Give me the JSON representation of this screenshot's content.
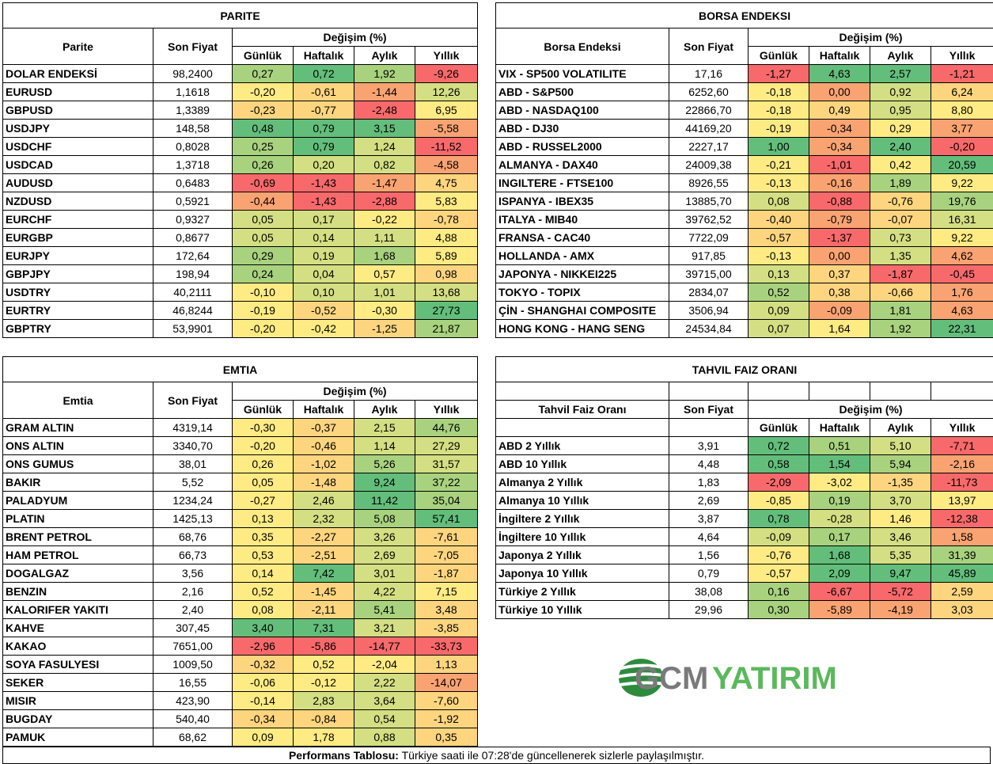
{
  "parite": {
    "title": "PARITE",
    "name_header": "Parite",
    "price_header": "Son Fiyat",
    "change_header": "Değişim (%)",
    "periods": [
      "Günlük",
      "Haftalık",
      "Aylık",
      "Yıllık"
    ],
    "rows": [
      {
        "name": "DOLAR ENDEKSİ",
        "price": "98,2400",
        "vals": [
          "0,27",
          "0,72",
          "1,92",
          "-9,26"
        ]
      },
      {
        "name": "EURUSD",
        "price": "1,1618",
        "vals": [
          "-0,20",
          "-0,61",
          "-1,44",
          "12,26"
        ]
      },
      {
        "name": "GBPUSD",
        "price": "1,3389",
        "vals": [
          "-0,23",
          "-0,77",
          "-2,48",
          "6,95"
        ]
      },
      {
        "name": "USDJPY",
        "price": "148,58",
        "vals": [
          "0,48",
          "0,79",
          "3,15",
          "-5,58"
        ]
      },
      {
        "name": "USDCHF",
        "price": "0,8028",
        "vals": [
          "0,25",
          "0,79",
          "1,24",
          "-11,52"
        ]
      },
      {
        "name": "USDCAD",
        "price": "1,3718",
        "vals": [
          "0,26",
          "0,20",
          "0,82",
          "-4,58"
        ]
      },
      {
        "name": "AUDUSD",
        "price": "0,6483",
        "vals": [
          "-0,69",
          "-1,43",
          "-1,47",
          "4,75"
        ]
      },
      {
        "name": "NZDUSD",
        "price": "0,5921",
        "vals": [
          "-0,44",
          "-1,43",
          "-2,88",
          "5,83"
        ]
      },
      {
        "name": "EURCHF",
        "price": "0,9327",
        "vals": [
          "0,05",
          "0,17",
          "-0,22",
          "-0,78"
        ]
      },
      {
        "name": "EURGBP",
        "price": "0,8677",
        "vals": [
          "0,05",
          "0,14",
          "1,11",
          "4,88"
        ]
      },
      {
        "name": "EURJPY",
        "price": "172,64",
        "vals": [
          "0,29",
          "0,19",
          "1,68",
          "5,89"
        ]
      },
      {
        "name": "GBPJPY",
        "price": "198,94",
        "vals": [
          "0,24",
          "0,04",
          "0,57",
          "0,98"
        ]
      },
      {
        "name": "USDTRY",
        "price": "40,2111",
        "vals": [
          "-0,10",
          "0,10",
          "1,01",
          "13,68"
        ]
      },
      {
        "name": "EURTRY",
        "price": "46,8244",
        "vals": [
          "-0,19",
          "-0,52",
          "-0,30",
          "27,73"
        ]
      },
      {
        "name": "GBPTRY",
        "price": "53,9901",
        "vals": [
          "-0,20",
          "-0,42",
          "-1,25",
          "21,87"
        ]
      }
    ]
  },
  "borsa": {
    "title": "BORSA ENDEKSI",
    "name_header": "Borsa Endeksi",
    "price_header": "Son Fiyat",
    "change_header": "Değişim (%)",
    "periods": [
      "Günlük",
      "Haftalık",
      "Aylık",
      "Yıllık"
    ],
    "rows": [
      {
        "name": "VIX  - SP500 VOLATILITE",
        "price": "17,16",
        "vals": [
          "-1,27",
          "4,63",
          "2,57",
          "-1,21"
        ]
      },
      {
        "name": "ABD - S&P500",
        "price": "6252,60",
        "vals": [
          "-0,18",
          "0,00",
          "0,92",
          "6,24"
        ]
      },
      {
        "name": "ABD - NASDAQ100",
        "price": "22866,70",
        "vals": [
          "-0,18",
          "0,49",
          "0,95",
          "8,80"
        ]
      },
      {
        "name": "ABD - DJ30",
        "price": "44169,20",
        "vals": [
          "-0,19",
          "-0,34",
          "0,29",
          "3,77"
        ]
      },
      {
        "name": "ABD - RUSSEL2000",
        "price": "2227,17",
        "vals": [
          "1,00",
          "-0,34",
          "2,40",
          "-0,20"
        ]
      },
      {
        "name": "ALMANYA - DAX40",
        "price": "24009,38",
        "vals": [
          "-0,21",
          "-1,01",
          "0,42",
          "20,59"
        ]
      },
      {
        "name": "INGILTERE - FTSE100",
        "price": "8926,55",
        "vals": [
          "-0,13",
          "-0,16",
          "1,89",
          "9,22"
        ]
      },
      {
        "name": "ISPANYA - IBEX35",
        "price": "13885,70",
        "vals": [
          "0,08",
          "-0,88",
          "-0,76",
          "19,76"
        ]
      },
      {
        "name": "ITALYA - MIB40",
        "price": "39762,52",
        "vals": [
          "-0,40",
          "-0,79",
          "-0,07",
          "16,31"
        ]
      },
      {
        "name": "FRANSA - CAC40",
        "price": "7722,09",
        "vals": [
          "-0,57",
          "-1,37",
          "0,73",
          "9,22"
        ]
      },
      {
        "name": "HOLLANDA - AMX",
        "price": "917,85",
        "vals": [
          "-0,13",
          "0,00",
          "1,35",
          "4,62"
        ]
      },
      {
        "name": "JAPONYA - NIKKEI225",
        "price": "39715,00",
        "vals": [
          "0,13",
          "0,37",
          "-1,87",
          "-0,45"
        ]
      },
      {
        "name": "TOKYO - TOPIX",
        "price": "2834,07",
        "vals": [
          "0,52",
          "0,38",
          "-0,66",
          "1,76"
        ]
      },
      {
        "name": "ÇİN - SHANGHAI COMPOSITE",
        "price": "3506,94",
        "vals": [
          "0,09",
          "-0,09",
          "1,81",
          "4,63"
        ]
      },
      {
        "name": "HONG KONG - HANG SENG",
        "price": "24534,84",
        "vals": [
          "0,07",
          "1,64",
          "1,92",
          "22,31"
        ]
      }
    ]
  },
  "emtia": {
    "title": "EMTIA",
    "name_header": "Emtia",
    "price_header": "Son Fiyat",
    "change_header": "Değişim (%)",
    "periods": [
      "Günlük",
      "Haftalık",
      "Aylık",
      "Yıllık"
    ],
    "rows": [
      {
        "name": "GRAM ALTIN",
        "price": "4319,14",
        "vals": [
          "-0,30",
          "-0,37",
          "2,15",
          "44,76"
        ]
      },
      {
        "name": "ONS ALTIN",
        "price": "3340,70",
        "vals": [
          "-0,20",
          "-0,46",
          "1,14",
          "27,29"
        ]
      },
      {
        "name": "ONS GUMUS",
        "price": "38,01",
        "vals": [
          "0,26",
          "-1,02",
          "5,26",
          "31,57"
        ]
      },
      {
        "name": "BAKIR",
        "price": "5,52",
        "vals": [
          "0,05",
          "-1,48",
          "9,24",
          "37,22"
        ]
      },
      {
        "name": "PALADYUM",
        "price": "1234,24",
        "vals": [
          "-0,27",
          "2,46",
          "11,42",
          "35,04"
        ]
      },
      {
        "name": "PLATIN",
        "price": "1425,13",
        "vals": [
          "0,13",
          "2,32",
          "5,08",
          "57,41"
        ]
      },
      {
        "name": "BRENT PETROL",
        "price": "68,76",
        "vals": [
          "0,35",
          "-2,27",
          "3,26",
          "-7,61"
        ]
      },
      {
        "name": "HAM PETROL",
        "price": "66,73",
        "vals": [
          "0,53",
          "-2,51",
          "2,69",
          "-7,05"
        ]
      },
      {
        "name": "DOGALGAZ",
        "price": "3,56",
        "vals": [
          "0,14",
          "7,42",
          "3,01",
          "-1,87"
        ]
      },
      {
        "name": "BENZIN",
        "price": "2,16",
        "vals": [
          "0,52",
          "-1,45",
          "4,22",
          "7,15"
        ]
      },
      {
        "name": "KALORIFER YAKITI",
        "price": "2,40",
        "vals": [
          "0,08",
          "-2,11",
          "5,41",
          "3,48"
        ]
      },
      {
        "name": "KAHVE",
        "price": "307,45",
        "vals": [
          "3,40",
          "7,31",
          "3,21",
          "-3,85"
        ]
      },
      {
        "name": "KAKAO",
        "price": "7651,00",
        "vals": [
          "-2,96",
          "-5,86",
          "-14,77",
          "-33,73"
        ]
      },
      {
        "name": "SOYA FASULYESI",
        "price": "1009,50",
        "vals": [
          "-0,32",
          "0,52",
          "-2,04",
          "1,13"
        ]
      },
      {
        "name": "SEKER",
        "price": "16,55",
        "vals": [
          "-0,06",
          "-0,12",
          "2,22",
          "-14,07"
        ]
      },
      {
        "name": "MISIR",
        "price": "423,90",
        "vals": [
          "-0,14",
          "2,83",
          "3,64",
          "-7,60"
        ]
      },
      {
        "name": "BUGDAY",
        "price": "540,40",
        "vals": [
          "-0,34",
          "-0,84",
          "0,54",
          "-1,92"
        ]
      },
      {
        "name": "PAMUK",
        "price": "68,62",
        "vals": [
          "0,09",
          "1,78",
          "0,88",
          "0,35"
        ]
      }
    ]
  },
  "tahvil": {
    "title": "TAHVIL FAIZ ORANI",
    "name_header": "Tahvil Faiz Oranı",
    "price_header": "Son Fiyat",
    "change_header": "Değişim (%)",
    "periods": [
      "Günlük",
      "Haftalık",
      "Aylık",
      "Yıllık"
    ],
    "rows": [
      {
        "name": "ABD 2 Yıllık",
        "price": "3,91",
        "vals": [
          "0,72",
          "0,51",
          "5,10",
          "-7,71"
        ]
      },
      {
        "name": "ABD 10 Yıllık",
        "price": "4,48",
        "vals": [
          "0,58",
          "1,54",
          "5,94",
          "-2,16"
        ]
      },
      {
        "name": "Almanya 2 Yıllık",
        "price": "1,83",
        "vals": [
          "-2,09",
          "-3,02",
          "-1,35",
          "-11,73"
        ]
      },
      {
        "name": "Almanya 10 Yıllık",
        "price": "2,69",
        "vals": [
          "-0,85",
          "0,19",
          "3,70",
          "13,97"
        ]
      },
      {
        "name": "İngiltere 2 Yıllık",
        "price": "3,87",
        "vals": [
          "0,78",
          "-0,28",
          "1,46",
          "-12,38"
        ]
      },
      {
        "name": "İngiltere 10 Yıllık",
        "price": "4,64",
        "vals": [
          "-0,09",
          "0,17",
          "3,46",
          "1,58"
        ]
      },
      {
        "name": "Japonya 2 Yıllık",
        "price": "1,56",
        "vals": [
          "-0,76",
          "1,68",
          "5,35",
          "31,39"
        ]
      },
      {
        "name": "Japonya 10 Yıllık",
        "price": "0,79",
        "vals": [
          "-0,57",
          "2,09",
          "9,47",
          "45,89"
        ]
      },
      {
        "name": "Türkiye 2 Yıllık",
        "price": "38,08",
        "vals": [
          "0,16",
          "-6,67",
          "-5,72",
          "2,59"
        ]
      },
      {
        "name": "Türkiye 10 Yıllık",
        "price": "29,96",
        "vals": [
          "0,30",
          "-5,89",
          "-4,19",
          "3,03"
        ]
      }
    ]
  },
  "logo": {
    "part1": "GCM",
    "part2": "YATIRIM"
  },
  "footer": {
    "bold": "Performans Tablosu:",
    "text": " Türkiye saati ile 07:28'de güncellenerek sizlerle paylaşılmıştır."
  }
}
